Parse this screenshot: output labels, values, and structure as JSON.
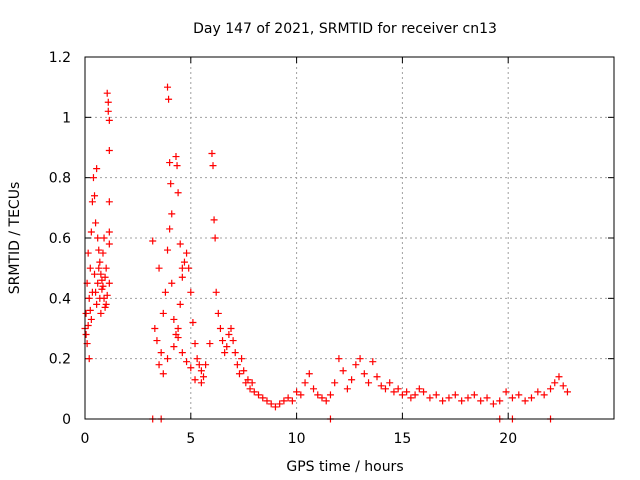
{
  "chart_data": {
    "type": "scatter",
    "title": "Day 147 of 2021, SRMTID for receiver cn13",
    "xlabel": "GPS time / hours",
    "ylabel": "SRMTID / TECUs",
    "xlim": [
      0,
      25
    ],
    "ylim": [
      0,
      1.2
    ],
    "xticks": [
      0,
      5,
      10,
      15,
      20
    ],
    "xtick_labels": [
      "0",
      "5",
      "10",
      "15",
      "20"
    ],
    "yticks": [
      0,
      0.2,
      0.4,
      0.6,
      0.8,
      1.0,
      1.2
    ],
    "ytick_labels": [
      "0",
      "0.2",
      "0.4",
      "0.6",
      "0.8",
      "1",
      "1.2"
    ],
    "grid": true,
    "marker": "+",
    "color": "#ff0000",
    "series": [
      {
        "name": "SRMTID",
        "x": [
          0.0,
          0.05,
          0.1,
          0.15,
          0.2,
          0.25,
          0.3,
          0.35,
          0.4,
          0.45,
          0.5,
          0.55,
          0.6,
          0.65,
          0.7,
          0.75,
          0.8,
          0.85,
          0.9,
          0.95,
          1.0,
          1.05,
          1.1,
          1.15,
          0.1,
          0.2,
          0.3,
          0.45,
          0.55,
          0.6,
          0.7,
          0.8,
          0.9,
          1.0,
          1.1,
          1.15,
          1.15,
          1.15,
          1.15,
          1.15,
          0.05,
          0.15,
          0.25,
          0.35,
          0.5,
          0.65,
          0.75,
          0.85,
          0.95,
          1.05,
          3.2,
          3.5,
          3.3,
          3.4,
          3.6,
          3.7,
          3.8,
          3.9,
          4.0,
          4.1,
          4.2,
          4.3,
          4.4,
          4.5,
          4.6,
          4.7,
          4.8,
          4.9,
          5.0,
          5.1,
          5.2,
          5.3,
          5.4,
          5.5,
          5.6,
          3.9,
          3.95,
          4.0,
          4.05,
          4.1,
          4.3,
          4.35,
          4.4,
          4.5,
          4.6,
          3.5,
          3.7,
          3.9,
          4.2,
          4.4,
          4.6,
          4.8,
          5.0,
          5.2,
          5.5,
          5.7,
          5.9,
          6.0,
          6.05,
          6.1,
          6.15,
          6.2,
          6.3,
          6.4,
          6.5,
          6.6,
          6.7,
          6.8,
          6.9,
          7.0,
          7.1,
          7.2,
          7.3,
          7.4,
          7.5,
          7.6,
          7.7,
          7.8,
          7.9,
          8.0,
          8.2,
          8.4,
          8.6,
          8.8,
          9.0,
          9.2,
          9.4,
          9.6,
          9.8,
          10.0,
          10.2,
          10.4,
          10.6,
          10.8,
          11.0,
          11.2,
          11.4,
          11.6,
          11.8,
          12.0,
          12.2,
          12.4,
          12.6,
          12.8,
          13.0,
          13.2,
          13.4,
          13.6,
          13.8,
          14.0,
          14.2,
          14.4,
          14.6,
          14.8,
          15.0,
          15.2,
          15.4,
          15.6,
          15.8,
          16.0,
          16.3,
          16.6,
          16.9,
          17.2,
          17.5,
          17.8,
          18.1,
          18.4,
          18.7,
          19.0,
          19.3,
          19.6,
          19.9,
          20.2,
          20.5,
          20.8,
          21.1,
          21.4,
          21.7,
          22.0,
          22.2,
          22.4,
          22.6,
          22.8,
          3.2,
          3.6,
          11.6,
          19.6,
          20.2,
          22.0
        ],
        "y": [
          0.3,
          0.35,
          0.45,
          0.55,
          0.4,
          0.5,
          0.62,
          0.72,
          0.8,
          0.48,
          0.42,
          0.38,
          0.45,
          0.5,
          0.4,
          0.35,
          0.43,
          0.55,
          0.6,
          0.47,
          0.5,
          1.08,
          1.05,
          0.89,
          0.25,
          0.2,
          0.33,
          0.74,
          0.83,
          0.6,
          0.52,
          0.46,
          0.4,
          0.38,
          1.02,
          0.99,
          0.72,
          0.62,
          0.58,
          0.45,
          0.28,
          0.31,
          0.36,
          0.42,
          0.65,
          0.56,
          0.48,
          0.44,
          0.37,
          0.41,
          0.59,
          0.5,
          0.3,
          0.26,
          0.22,
          0.35,
          0.42,
          0.56,
          0.63,
          0.45,
          0.33,
          0.28,
          0.3,
          0.38,
          0.47,
          0.52,
          0.55,
          0.5,
          0.42,
          0.32,
          0.25,
          0.2,
          0.18,
          0.16,
          0.14,
          1.1,
          1.06,
          0.85,
          0.78,
          0.68,
          0.87,
          0.84,
          0.75,
          0.58,
          0.5,
          0.18,
          0.15,
          0.2,
          0.24,
          0.27,
          0.22,
          0.19,
          0.17,
          0.13,
          0.12,
          0.18,
          0.25,
          0.88,
          0.84,
          0.66,
          0.6,
          0.42,
          0.35,
          0.3,
          0.26,
          0.22,
          0.24,
          0.28,
          0.3,
          0.26,
          0.22,
          0.18,
          0.15,
          0.2,
          0.16,
          0.12,
          0.13,
          0.1,
          0.12,
          0.09,
          0.08,
          0.07,
          0.06,
          0.05,
          0.04,
          0.05,
          0.06,
          0.07,
          0.06,
          0.09,
          0.08,
          0.12,
          0.15,
          0.1,
          0.08,
          0.07,
          0.06,
          0.08,
          0.12,
          0.2,
          0.16,
          0.1,
          0.13,
          0.18,
          0.2,
          0.15,
          0.12,
          0.19,
          0.14,
          0.11,
          0.1,
          0.12,
          0.09,
          0.1,
          0.08,
          0.09,
          0.07,
          0.08,
          0.1,
          0.09,
          0.07,
          0.08,
          0.06,
          0.07,
          0.08,
          0.06,
          0.07,
          0.08,
          0.06,
          0.07,
          0.05,
          0.06,
          0.09,
          0.07,
          0.08,
          0.06,
          0.07,
          0.09,
          0.08,
          0.1,
          0.12,
          0.14,
          0.11,
          0.09,
          0.0,
          0.0,
          0.0,
          0.0,
          0.0,
          0.0
        ]
      }
    ]
  }
}
